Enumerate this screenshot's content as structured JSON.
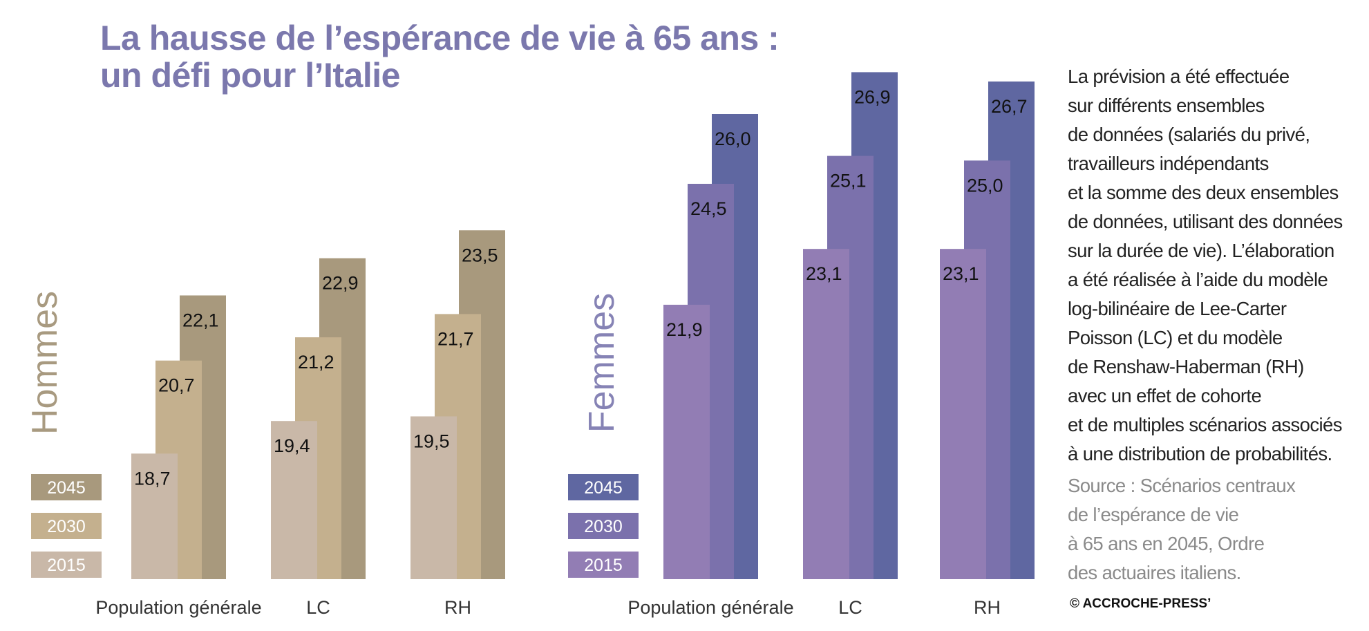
{
  "title": {
    "line1": "La hausse de l’espérance de vie à 65 ans :",
    "line2": "un défi pour l’Italie"
  },
  "description": [
    "La prévision a été effectuée",
    "sur différents ensembles",
    "de données (salariés du privé,",
    "travailleurs indépendants",
    "et la somme des deux ensembles",
    "de données, utilisant des données",
    "sur la durée de vie). L’élaboration",
    "a été réalisée à l’aide du modèle",
    "log-bilinéaire de Lee-Carter",
    "Poisson (LC) et du modèle",
    "de Renshaw-Haberman (RH)",
    "avec un effet de cohorte",
    "et de multiples scénarios associés",
    "à une distribution de probabilités."
  ],
  "source": [
    "Source : Scénarios centraux",
    "de l’espérance de vie",
    "à 65 ans en 2045, Ordre",
    "des actuaires italiens."
  ],
  "credit": "© ACCROCHE-PRESS’",
  "colors": {
    "title": "#7b78ad",
    "hommes_label": "#a89a80",
    "femmes_label": "#8683b5",
    "value_text": "#111111",
    "category_text": "#333333"
  },
  "chart_data": [
    {
      "type": "bar",
      "group_label": "Hommes",
      "categories": [
        "Population générale",
        "LC",
        "RH"
      ],
      "series": [
        {
          "name": "2015",
          "values": [
            18.7,
            19.4,
            19.5
          ],
          "color": "#c9b8a8"
        },
        {
          "name": "2030",
          "values": [
            20.7,
            21.2,
            21.7
          ],
          "color": "#c4b08e"
        },
        {
          "name": "2045",
          "values": [
            22.1,
            22.9,
            23.5
          ],
          "color": "#a8997d"
        }
      ],
      "ylim": [
        16,
        28
      ]
    },
    {
      "type": "bar",
      "group_label": "Femmes",
      "categories": [
        "Population générale",
        "LC",
        "RH"
      ],
      "series": [
        {
          "name": "2015",
          "values": [
            21.9,
            23.1,
            23.1
          ],
          "color": "#927db4"
        },
        {
          "name": "2030",
          "values": [
            24.5,
            25.1,
            25.0
          ],
          "color": "#7b71ac"
        },
        {
          "name": "2045",
          "values": [
            26.0,
            26.9,
            26.7
          ],
          "color": "#5f67a1"
        }
      ],
      "ylim": [
        16,
        28
      ]
    }
  ]
}
